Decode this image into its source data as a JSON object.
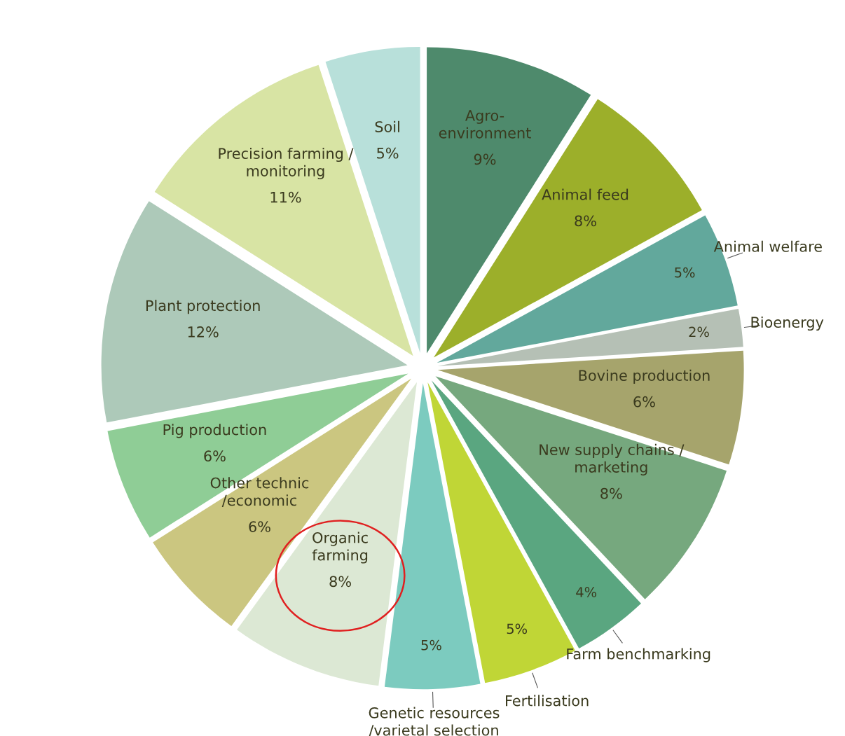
{
  "chart_data": {
    "type": "pie",
    "categories": [
      "Agro-\nenvironment",
      "Animal feed",
      "Animal welfare",
      "Bioenergy",
      "Bovine production",
      "New supply chains /\nmarketing",
      "Farm benchmarking",
      "Fertilisation",
      "Genetic resources\n/varietal selection",
      "Organic\nfarming",
      "Other technic\n/economic",
      "Pig production",
      "Plant protection",
      "Precision farming /\nmonitoring",
      "Soil"
    ],
    "values": [
      9,
      8,
      5,
      2,
      6,
      8,
      4,
      5,
      5,
      8,
      6,
      6,
      12,
      11,
      5
    ],
    "colors": [
      "#4e8a6c",
      "#9caf2a",
      "#62a89c",
      "#b5c0b5",
      "#a6a46c",
      "#76a87e",
      "#5aa680",
      "#c0d636",
      "#7ccbbf",
      "#dce8d4",
      "#cbc680",
      "#8fcd96",
      "#adc9b9",
      "#d8e4a4",
      "#b8e0da"
    ],
    "value_labels": [
      "9%",
      "8%",
      "5%",
      "2%",
      "6%",
      "8%",
      "4%",
      "5%",
      "5%",
      "8%",
      "6%",
      "6%",
      "12%",
      "11%",
      "5%"
    ],
    "legend": false
  }
}
